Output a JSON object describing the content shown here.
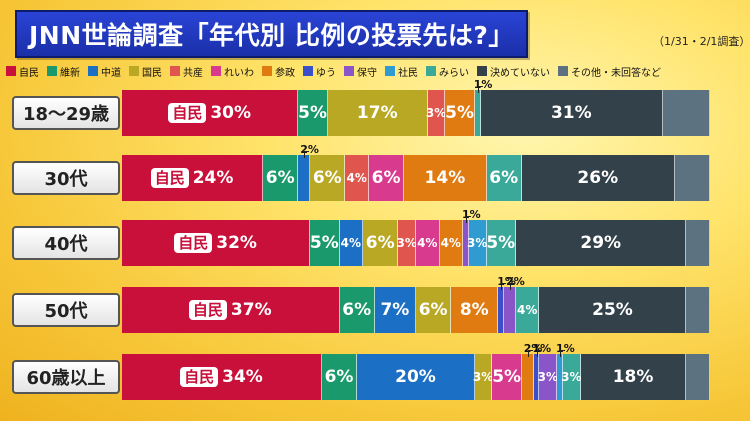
{
  "title": "JNN世論調査「年代別 比例の投票先は?」",
  "subtitle": "（1/31・2/1調査）",
  "colors": {
    "自民": "#c8103a",
    "維新": "#1a9a6c",
    "中道": "#1b6fc4",
    "国民": "#b8a824",
    "共産": "#e0554d",
    "れいわ": "#d83a8e",
    "参政": "#e07b12",
    "ゆう": "#3a4fc8",
    "保守": "#8a55c8",
    "社民": "#2f9bd0",
    "みらい": "#3aa99a",
    "決めていない": "#33414a",
    "その他・未回答など": "#5d7280"
  },
  "legend": [
    "自民",
    "維新",
    "中道",
    "国民",
    "共産",
    "れいわ",
    "参政",
    "ゆう",
    "保守",
    "社民",
    "みらい",
    "決めていない",
    "その他・未回答など"
  ],
  "chart_data": {
    "type": "bar",
    "stacked": true,
    "orientation": "horizontal",
    "title": "JNN世論調査「年代別 比例の投票先は?」",
    "categories": [
      "18〜29歳",
      "30代",
      "40代",
      "50代",
      "60歳以上"
    ],
    "unit": "%",
    "series": [
      {
        "name": "自民",
        "values": [
          30,
          24,
          32,
          37,
          34
        ]
      },
      {
        "name": "維新",
        "values": [
          5,
          6,
          5,
          6,
          6
        ]
      },
      {
        "name": "中道",
        "values": [
          0,
          2,
          4,
          7,
          20
        ]
      },
      {
        "name": "国民",
        "values": [
          17,
          6,
          6,
          6,
          3
        ]
      },
      {
        "name": "共産",
        "values": [
          3,
          4,
          3,
          0,
          0
        ]
      },
      {
        "name": "れいわ",
        "values": [
          0,
          6,
          4,
          0,
          5
        ]
      },
      {
        "name": "参政",
        "values": [
          5,
          14,
          4,
          8,
          2
        ]
      },
      {
        "name": "ゆう",
        "values": [
          0,
          0,
          0,
          1,
          1
        ]
      },
      {
        "name": "保守",
        "values": [
          0,
          0,
          1,
          2,
          3
        ]
      },
      {
        "name": "社民",
        "values": [
          0,
          0,
          3,
          0,
          1
        ]
      },
      {
        "name": "みらい",
        "values": [
          1,
          6,
          5,
          4,
          3
        ]
      },
      {
        "name": "決めていない",
        "values": [
          31,
          26,
          29,
          25,
          18
        ]
      },
      {
        "name": "その他・未回答など",
        "values": [
          8,
          6,
          4,
          4,
          4
        ]
      }
    ]
  }
}
